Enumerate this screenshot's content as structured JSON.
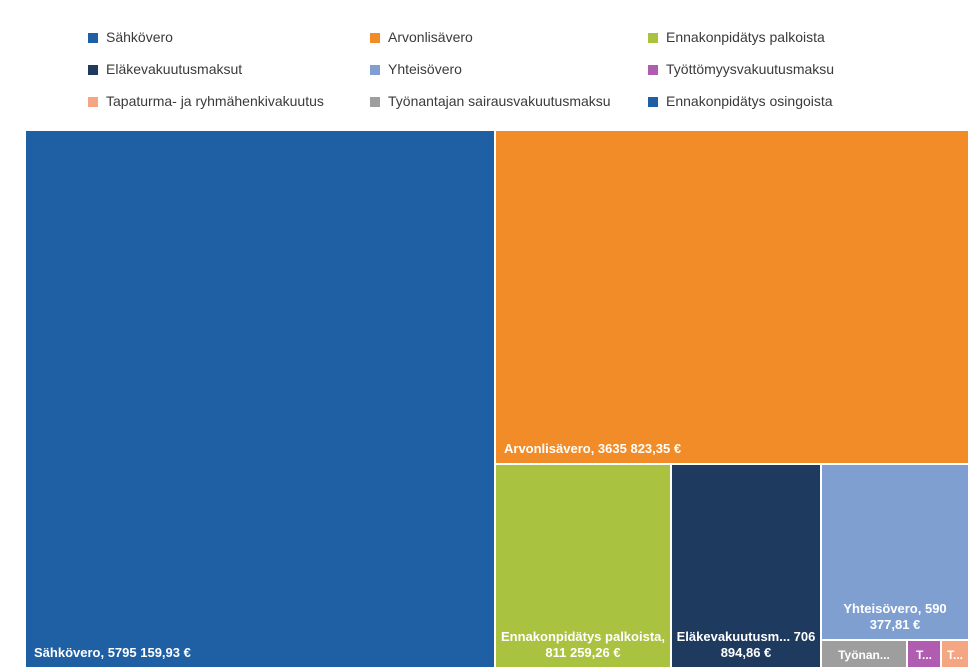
{
  "chart_data": {
    "type": "treemap",
    "currency": "€",
    "legend": [
      {
        "name": "Sähkövero",
        "color": "#1f5fa3"
      },
      {
        "name": "Arvonlisävero",
        "color": "#f28c28"
      },
      {
        "name": "Ennakonpidätys palkoista",
        "color": "#a9c23f"
      },
      {
        "name": "Eläkevakuutusmaksut",
        "color": "#1f3a5f"
      },
      {
        "name": "Yhteisövero",
        "color": "#7f9fd1"
      },
      {
        "name": "Työttömyysvakuutusmaksu",
        "color": "#b05cb0"
      },
      {
        "name": "Tapaturma- ja ryhmähenkivakuutus",
        "color": "#f4a582"
      },
      {
        "name": "Työnantajan sairausvakuutusmaksu",
        "color": "#9e9e9e"
      },
      {
        "name": "Ennakonpidätys osingoista",
        "color": "#1f5fa3"
      }
    ],
    "items": [
      {
        "name": "Sähkövero",
        "value": 5795159.93,
        "label": "Sähkövero, 5795 159,93 €",
        "color": "#1f5fa3"
      },
      {
        "name": "Arvonlisävero",
        "value": 3635823.35,
        "label": "Arvonlisävero, 3635 823,35 €",
        "color": "#f28c28"
      },
      {
        "name": "Ennakonpidätys palkoista",
        "value": 811259.26,
        "label": "Ennakonpidätys palkoista, 811 259,26 €",
        "color": "#a9c23f"
      },
      {
        "name": "Eläkevakuutusmaksut",
        "value": 706894.86,
        "label": "Eläkevakuutusm... 706 894,86 €",
        "color": "#1f3a5f"
      },
      {
        "name": "Yhteisövero",
        "value": 590377.81,
        "label": "Yhteisövero, 590 377,81 €",
        "color": "#7f9fd1"
      },
      {
        "name": "Työnantajan sairausvakuutusmaksu",
        "value": 95000,
        "label": "Työnan...",
        "color": "#9e9e9e"
      },
      {
        "name": "Työttömyysvakuutusmaksu",
        "value": 25000,
        "label": "T...",
        "color": "#b05cb0"
      },
      {
        "name": "Tapaturma- ja ryhmähenkivakuutus",
        "value": 15000,
        "label": "T...",
        "color": "#f4a582"
      }
    ]
  }
}
